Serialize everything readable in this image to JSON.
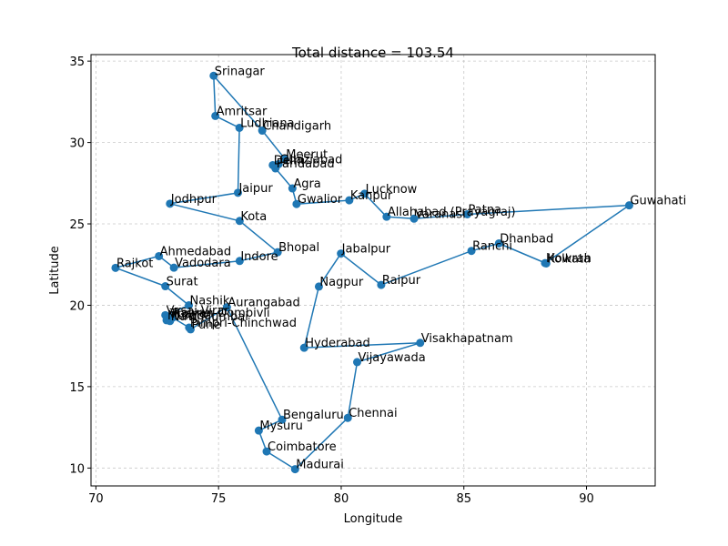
{
  "chart_data": {
    "type": "scatter",
    "title": "Total distance = 103.54",
    "xlabel": "Longitude",
    "ylabel": "Latitude",
    "xlim": [
      69.8,
      92.8
    ],
    "ylim": [
      8.9,
      35.4
    ],
    "xticks": [
      70,
      75,
      80,
      85,
      90
    ],
    "yticks": [
      10,
      15,
      20,
      25,
      30,
      35
    ],
    "grid": true,
    "grid_style": "dashed",
    "color": "#1f77b4",
    "route_closed": true,
    "points": [
      {
        "name": "Srinagar",
        "x": 74.8,
        "y": 34.1
      },
      {
        "name": "Amritsar",
        "x": 74.87,
        "y": 31.63
      },
      {
        "name": "Ludhiana",
        "x": 75.85,
        "y": 30.9
      },
      {
        "name": "Jaipur",
        "x": 75.79,
        "y": 26.91
      },
      {
        "name": "Jodhpur",
        "x": 73.02,
        "y": 26.24
      },
      {
        "name": "Kota",
        "x": 75.86,
        "y": 25.18
      },
      {
        "name": "Bhopal",
        "x": 77.41,
        "y": 23.26
      },
      {
        "name": "Indore",
        "x": 75.86,
        "y": 22.72
      },
      {
        "name": "Vadodara",
        "x": 73.18,
        "y": 22.31
      },
      {
        "name": "Ahmedabad",
        "x": 72.57,
        "y": 23.02
      },
      {
        "name": "Rajkot",
        "x": 70.8,
        "y": 22.3
      },
      {
        "name": "Surat",
        "x": 72.83,
        "y": 21.17
      },
      {
        "name": "Nashik",
        "x": 73.79,
        "y": 20.0
      },
      {
        "name": "Vasai-Virar",
        "x": 72.83,
        "y": 19.39
      },
      {
        "name": "Mumbai",
        "x": 72.88,
        "y": 19.08
      },
      {
        "name": "Thane",
        "x": 72.98,
        "y": 19.2
      },
      {
        "name": "Navi Mumbai",
        "x": 73.02,
        "y": 19.03
      },
      {
        "name": "Kalyan-Dombivli",
        "x": 73.13,
        "y": 19.24
      },
      {
        "name": "Pimpri-Chinchwad",
        "x": 73.8,
        "y": 18.63
      },
      {
        "name": "Pune",
        "x": 73.86,
        "y": 18.52
      },
      {
        "name": "Aurangabad",
        "x": 75.34,
        "y": 19.88
      },
      {
        "name": "Bengaluru",
        "x": 77.59,
        "y": 12.97
      },
      {
        "name": "Mysuru",
        "x": 76.64,
        "y": 12.3
      },
      {
        "name": "Coimbatore",
        "x": 76.96,
        "y": 11.02
      },
      {
        "name": "Madurai",
        "x": 78.12,
        "y": 9.93
      },
      {
        "name": "Chennai",
        "x": 80.27,
        "y": 13.08
      },
      {
        "name": "Vijayawada",
        "x": 80.65,
        "y": 16.51
      },
      {
        "name": "Visakhapatnam",
        "x": 83.22,
        "y": 17.69
      },
      {
        "name": "Hyderabad",
        "x": 78.49,
        "y": 17.39
      },
      {
        "name": "Nagpur",
        "x": 79.09,
        "y": 21.15
      },
      {
        "name": "Jabalpur",
        "x": 79.99,
        "y": 23.18
      },
      {
        "name": "Raipur",
        "x": 81.63,
        "y": 21.25
      },
      {
        "name": "Ranchi",
        "x": 85.31,
        "y": 23.34
      },
      {
        "name": "Dhanbad",
        "x": 86.43,
        "y": 23.8
      },
      {
        "name": "Kolkata",
        "x": 88.36,
        "y": 22.57
      },
      {
        "name": "Howrah",
        "x": 88.31,
        "y": 22.59
      },
      {
        "name": "Guwahati",
        "x": 91.74,
        "y": 26.14
      },
      {
        "name": "Patna",
        "x": 85.14,
        "y": 25.59
      },
      {
        "name": "Varanasi",
        "x": 82.97,
        "y": 25.32
      },
      {
        "name": "Allahabad (Prayagraj)",
        "x": 81.85,
        "y": 25.44
      },
      {
        "name": "Lucknow",
        "x": 80.95,
        "y": 26.85
      },
      {
        "name": "Kanpur",
        "x": 80.33,
        "y": 26.45
      },
      {
        "name": "Gwalior",
        "x": 78.18,
        "y": 26.22
      },
      {
        "name": "Agra",
        "x": 78.01,
        "y": 27.18
      },
      {
        "name": "Faridabad",
        "x": 77.32,
        "y": 28.41
      },
      {
        "name": "Delhi",
        "x": 77.21,
        "y": 28.61
      },
      {
        "name": "Ghaziabad",
        "x": 77.45,
        "y": 28.67
      },
      {
        "name": "Meerut",
        "x": 77.71,
        "y": 28.98
      },
      {
        "name": "Chandigarh",
        "x": 76.78,
        "y": 30.73
      }
    ]
  }
}
